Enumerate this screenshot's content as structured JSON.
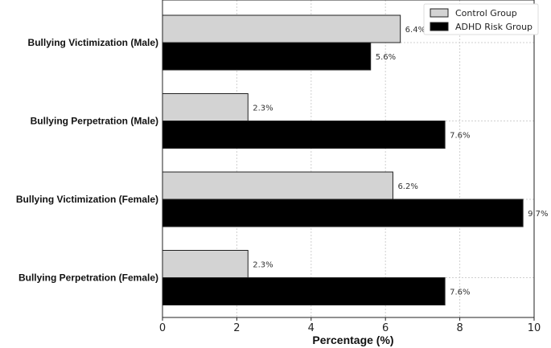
{
  "chart_data": {
    "type": "bar",
    "orientation": "horizontal",
    "categories": [
      "Bullying Victimization (Male)",
      "Bullying Perpetration (Male)",
      "Bullying Victimization (Female)",
      "Bullying Perpetration (Female)"
    ],
    "series": [
      {
        "name": "Control Group",
        "values": [
          6.4,
          2.3,
          6.2,
          2.3
        ],
        "color": "#d3d3d3"
      },
      {
        "name": "ADHD Risk Group",
        "values": [
          5.6,
          7.6,
          9.7,
          7.6
        ],
        "color": "#000000"
      }
    ],
    "value_labels": {
      "Control Group": [
        "6.4%",
        "2.3%",
        "6.2%",
        "2.3%"
      ],
      "ADHD Risk Group": [
        "5.6%",
        "7.6%",
        "9.7%",
        "7.6%"
      ]
    },
    "xlabel": "Percentage (%)",
    "xlim": [
      0,
      10
    ],
    "xticks": [
      0,
      2,
      4,
      6,
      8,
      10
    ],
    "grid": true,
    "legend_position": "top-right"
  }
}
